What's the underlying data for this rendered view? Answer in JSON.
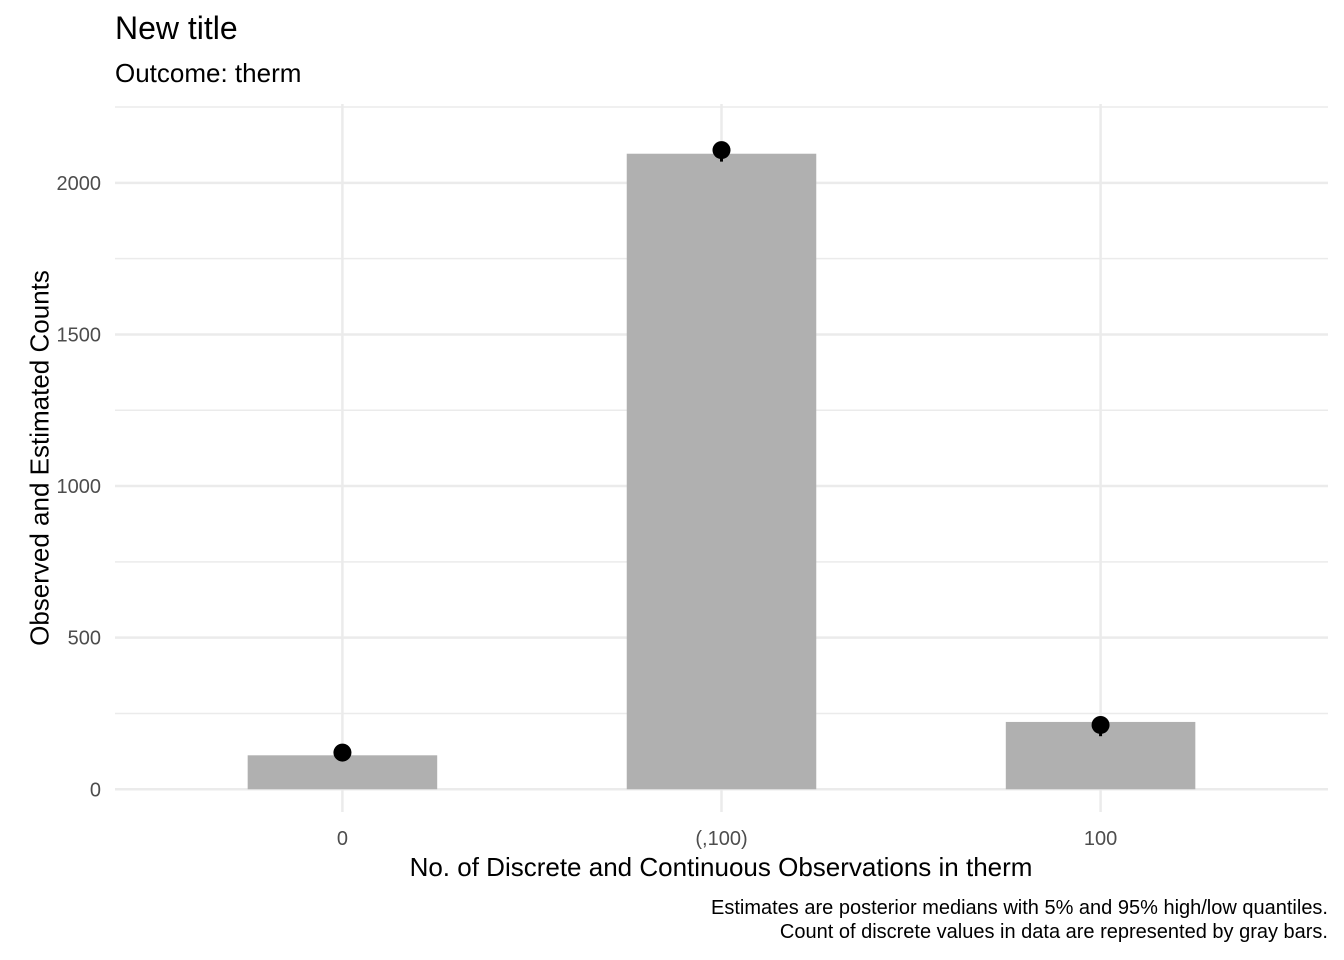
{
  "chart_data": {
    "type": "bar",
    "title": "New title",
    "subtitle": "Outcome: therm",
    "xlabel": "No. of Discrete and Continuous Observations in therm",
    "ylabel": "Observed and Estimated Counts",
    "caption": [
      "Estimates are posterior medians with 5% and 95% high/low quantiles.",
      "Count of discrete values in data are represented by gray bars."
    ],
    "categories": [
      "0",
      "(,100)",
      "100"
    ],
    "values": [
      112,
      2096,
      222
    ],
    "estimates": [
      {
        "median": 121,
        "low": 110,
        "high": 132
      },
      {
        "median": 2108,
        "low": 2070,
        "high": 2125
      },
      {
        "median": 212,
        "low": 175,
        "high": 222
      }
    ],
    "ylim": [
      -75,
      2260
    ],
    "yticks": [
      0,
      500,
      1000,
      1500,
      2000
    ],
    "grid": true,
    "legend": "none",
    "colors": {
      "bar": "#b0b0b0",
      "point": "#000000",
      "grid": "#ebebeb"
    }
  }
}
